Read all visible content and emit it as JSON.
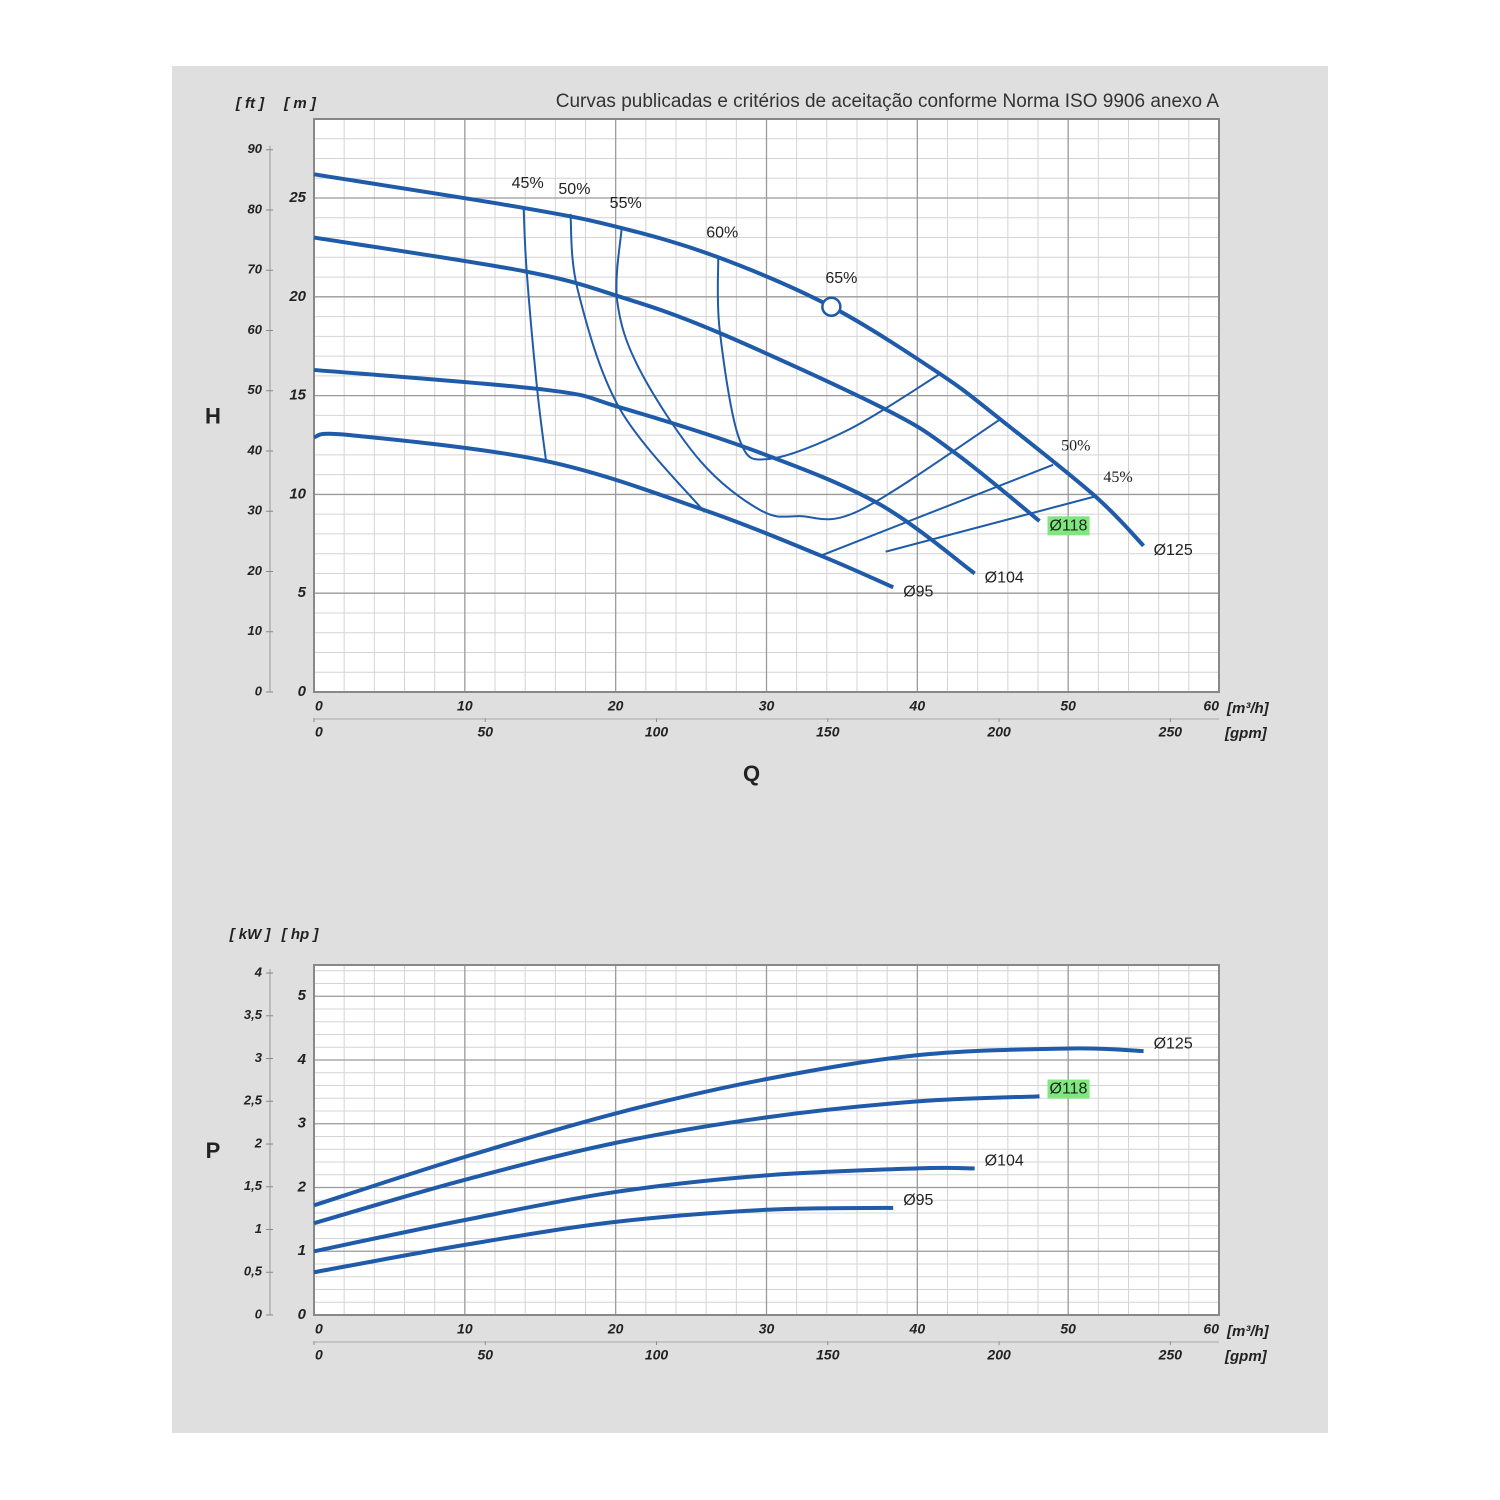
{
  "chart_data": [
    {
      "type": "line",
      "title": "Curvas publicadas e critérios de aceitação conforme Norma ISO 9906 anexo A",
      "x_label": "Q",
      "y_label": "H",
      "x_unit": "[m³/h]",
      "x2_unit": "[gpm]",
      "y_unit": "[ m ]",
      "y2_unit": "[ ft ]",
      "xlim": [
        0,
        60
      ],
      "xticks": [
        0,
        10,
        20,
        30,
        40,
        50,
        60
      ],
      "x2lim": [
        0,
        264.2
      ],
      "x2ticks": [
        0,
        50,
        100,
        150,
        200,
        250
      ],
      "ylim": [
        0,
        29
      ],
      "yticks": [
        0,
        5,
        10,
        15,
        20,
        25
      ],
      "y2lim": [
        0,
        95.1
      ],
      "y2ticks": [
        0,
        10,
        20,
        30,
        40,
        50,
        60,
        70,
        80,
        90
      ],
      "grid": true,
      "series": [
        {
          "name": "45%",
          "color": "#1f5ba8",
          "width": 2,
          "x": [
            13.9,
            14.1,
            14.8,
            15.4
          ],
          "values": [
            24.5,
            21.3,
            15.3,
            11.6
          ]
        },
        {
          "name": "50%",
          "color": "#1f5ba8",
          "width": 2,
          "x": [
            17.0,
            17.5,
            20.3,
            25.9
          ],
          "values": [
            24.2,
            20.3,
            14.3,
            9.1
          ]
        },
        {
          "name": "55%",
          "color": "#1f5ba8",
          "width": 2,
          "x": [
            20.4,
            20.1,
            21.6,
            25.6,
            29.6,
            32.2,
            36.2,
            45.5
          ],
          "values": [
            23.5,
            19.8,
            16.3,
            11.7,
            9.2,
            8.9,
            9.2,
            13.8
          ]
        },
        {
          "name": "60%",
          "color": "#1f5ba8",
          "width": 2,
          "x": [
            26.8,
            26.9,
            28.2,
            30.2,
            35.5,
            41.5
          ],
          "values": [
            22.0,
            18.3,
            12.8,
            11.8,
            13.3,
            16.1
          ]
        },
        {
          "name": "50%",
          "color": "#1f5ba8",
          "width": 2,
          "x": [
            33.6,
            49.0
          ],
          "values": [
            6.9,
            11.5
          ]
        },
        {
          "name": "45%",
          "color": "#1f5ba8",
          "width": 2,
          "x": [
            37.9,
            51.8
          ],
          "values": [
            7.1,
            9.9
          ]
        },
        {
          "name": "Ø125",
          "color": "#1f5ba8",
          "width": 4,
          "x": [
            0,
            13.9,
            20.3,
            26.8,
            34.3,
            41.5,
            45.5,
            51.8,
            55.0
          ],
          "values": [
            26.2,
            24.5,
            23.5,
            22.0,
            19.5,
            16.1,
            13.8,
            9.9,
            7.4
          ]
        },
        {
          "name": "Ø118",
          "color": "#1f5ba8",
          "width": 4,
          "highlight": "#7ee87e",
          "x": [
            0,
            13.9,
            20.3,
            26.8,
            37.9,
            42.5,
            48.1
          ],
          "values": [
            23.0,
            21.3,
            20.0,
            18.2,
            14.3,
            12.1,
            8.65
          ]
        },
        {
          "name": "Ø104",
          "color": "#1f5ba8",
          "width": 4,
          "x": [
            0,
            15.3,
            20.3,
            29.6,
            37.5,
            43.8
          ],
          "values": [
            16.3,
            15.3,
            14.4,
            12.1,
            9.5,
            6.0
          ]
        },
        {
          "name": "Ø95",
          "color": "#1f5ba8",
          "width": 4,
          "x": [
            0,
            2.4,
            15.3,
            25.9,
            33.6,
            38.4
          ],
          "values": [
            12.9,
            13.0,
            11.7,
            9.2,
            6.9,
            5.3
          ]
        }
      ],
      "annotations": [
        {
          "label": "65%",
          "x": 34.3,
          "y": 19.5
        }
      ]
    },
    {
      "type": "line",
      "y_label": "P",
      "x_unit": "[m³/h]",
      "x2_unit": "[gpm]",
      "y_unit": "[ hp ]",
      "y2_unit": "[ kW ]",
      "xlim": [
        0,
        60
      ],
      "xticks": [
        0,
        10,
        20,
        30,
        40,
        50,
        60
      ],
      "x2lim": [
        0,
        264.2
      ],
      "x2ticks": [
        0,
        50,
        100,
        150,
        200,
        250
      ],
      "ylim": [
        0,
        5.49
      ],
      "yticks": [
        0,
        1,
        2,
        3,
        4,
        5
      ],
      "y2lim": [
        0,
        4.094
      ],
      "y2ticks": [
        0,
        {
          "value": 0.5,
          "label": "0,5"
        },
        1,
        {
          "value": 1.5,
          "label": "1,5"
        },
        2,
        {
          "value": 2.5,
          "label": "2,5"
        },
        3,
        {
          "value": 3.5,
          "label": "3,5"
        },
        4
      ],
      "grid": true,
      "series": [
        {
          "name": "Ø125",
          "color": "#1f5ba8",
          "width": 4,
          "x": [
            0,
            10,
            20.3,
            30.2,
            40.2,
            50.1,
            55.0
          ],
          "values": [
            1.72,
            2.48,
            3.18,
            3.71,
            4.08,
            4.18,
            4.14
          ]
        },
        {
          "name": "Ø118",
          "color": "#1f5ba8",
          "width": 4,
          "highlight": "#7ee87e",
          "x": [
            0,
            10,
            20,
            30,
            40,
            48.1
          ],
          "values": [
            1.44,
            2.12,
            2.7,
            3.1,
            3.35,
            3.43
          ]
        },
        {
          "name": "Ø104",
          "color": "#1f5ba8",
          "width": 4,
          "x": [
            0,
            10,
            20,
            30,
            40,
            43.8
          ],
          "values": [
            1.0,
            1.49,
            1.93,
            2.19,
            2.3,
            2.3
          ]
        },
        {
          "name": "Ø95",
          "color": "#1f5ba8",
          "width": 4,
          "x": [
            0,
            10,
            20,
            30,
            38.4
          ],
          "values": [
            0.67,
            1.1,
            1.46,
            1.65,
            1.68
          ]
        }
      ]
    }
  ]
}
